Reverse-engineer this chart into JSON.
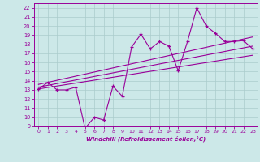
{
  "title": "",
  "xlabel": "Windchill (Refroidissement éolien,°C)",
  "bg_color": "#cce8e8",
  "line_color": "#990099",
  "grid_color": "#aacccc",
  "xlim": [
    -0.5,
    23.5
  ],
  "ylim": [
    9,
    22.5
  ],
  "xticks": [
    0,
    1,
    2,
    3,
    4,
    5,
    6,
    7,
    8,
    9,
    10,
    11,
    12,
    13,
    14,
    15,
    16,
    17,
    18,
    19,
    20,
    21,
    22,
    23
  ],
  "yticks": [
    9,
    10,
    11,
    12,
    13,
    14,
    15,
    16,
    17,
    18,
    19,
    20,
    21,
    22
  ],
  "data_x": [
    0,
    1,
    2,
    3,
    4,
    5,
    6,
    7,
    8,
    9,
    10,
    11,
    12,
    13,
    14,
    15,
    16,
    17,
    18,
    19,
    20,
    21,
    22,
    23
  ],
  "data_y": [
    13.1,
    13.8,
    13.0,
    13.0,
    13.3,
    8.8,
    10.0,
    9.7,
    13.4,
    12.3,
    17.7,
    19.1,
    17.5,
    18.3,
    17.8,
    15.1,
    18.3,
    22.0,
    20.0,
    19.2,
    18.3,
    18.3,
    18.4,
    17.5
  ],
  "trend1_x": [
    0,
    23
  ],
  "trend1_y": [
    13.1,
    16.8
  ],
  "trend2_x": [
    0,
    23
  ],
  "trend2_y": [
    13.3,
    17.8
  ],
  "trend3_x": [
    0,
    23
  ],
  "trend3_y": [
    13.6,
    18.8
  ]
}
